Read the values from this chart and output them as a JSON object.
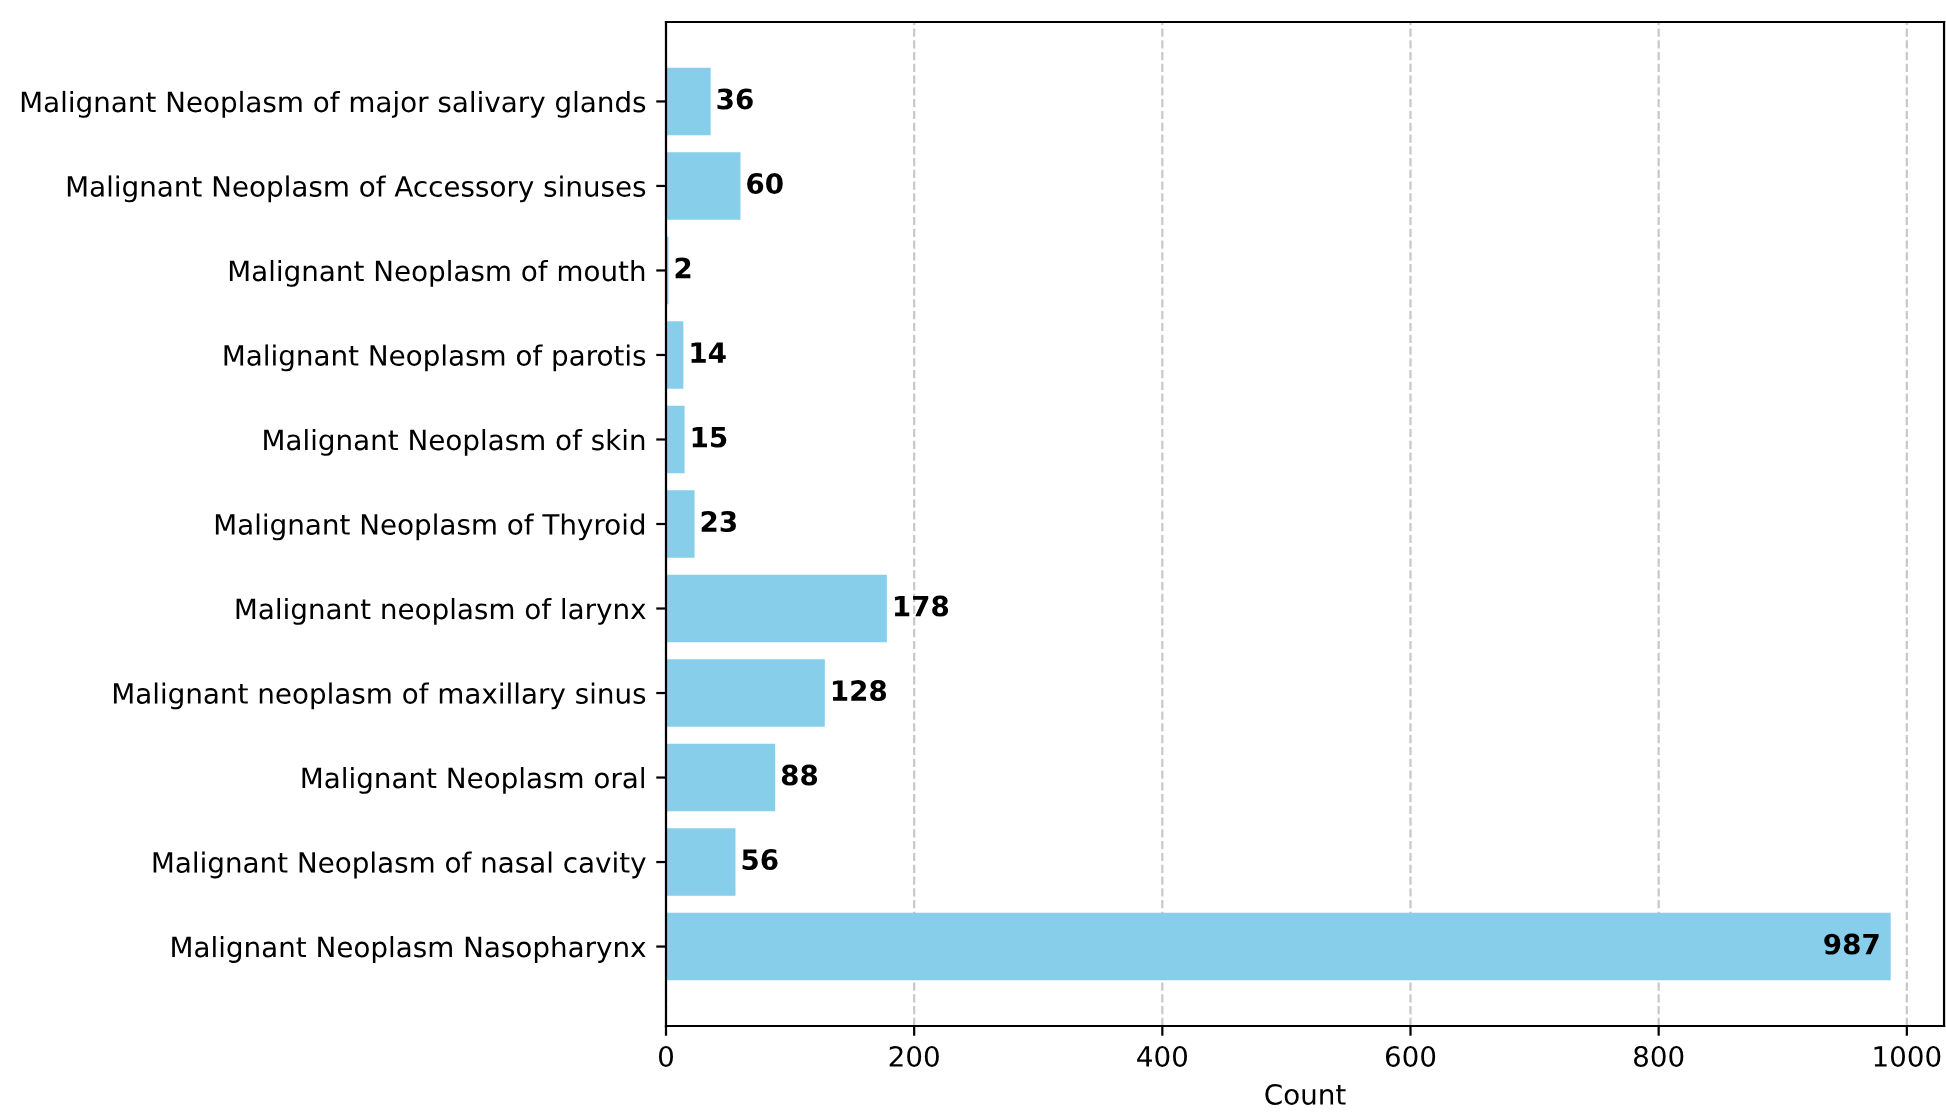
{
  "chart_data": {
    "type": "bar",
    "orientation": "horizontal",
    "xlabel": "Count",
    "categories": [
      "Malignant Neoplasm of major salivary glands",
      "Malignant Neoplasm of Accessory sinuses",
      "Malignant Neoplasm of mouth",
      "Malignant Neoplasm of parotis",
      "Malignant Neoplasm of skin",
      "Malignant Neoplasm of Thyroid",
      "Malignant neoplasm of larynx",
      "Malignant neoplasm of maxillary sinus",
      "Malignant Neoplasm oral",
      "Malignant Neoplasm of nasal cavity",
      "Malignant Neoplasm Nasopharynx"
    ],
    "values": [
      36,
      60,
      2,
      14,
      15,
      23,
      178,
      128,
      88,
      56,
      987
    ],
    "color": "#87ceeb",
    "data_labels": true,
    "xlim": [
      0,
      1030
    ],
    "xticks": [
      0,
      200,
      400,
      600,
      800,
      1000
    ],
    "grid": "x",
    "legend": false
  }
}
